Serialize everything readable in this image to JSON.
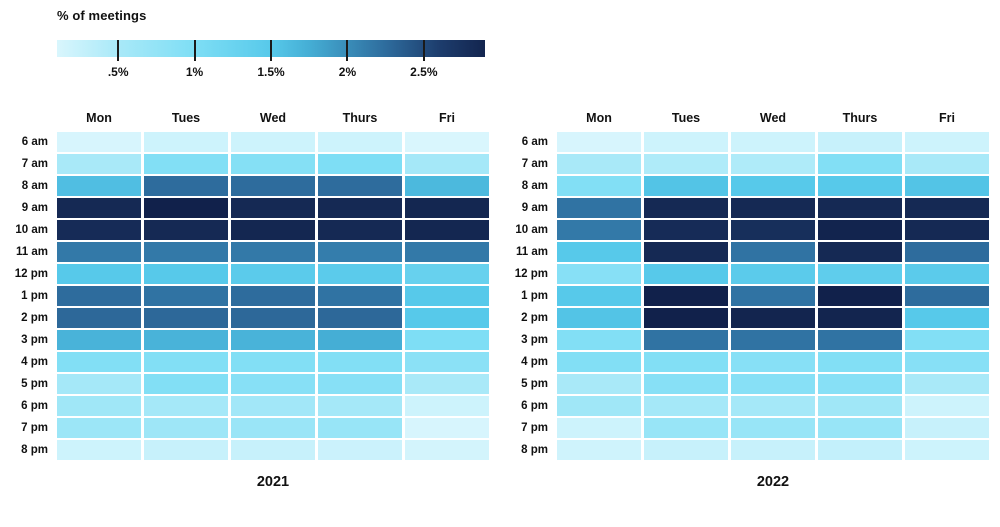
{
  "legend": {
    "title": "% of meetings",
    "ticks": [
      {
        "value": 0.5,
        "label": ".5%"
      },
      {
        "value": 1.0,
        "label": "1%"
      },
      {
        "value": 1.5,
        "label": "1.5%"
      },
      {
        "value": 2.0,
        "label": "2%"
      },
      {
        "value": 2.5,
        "label": "2.5%"
      }
    ],
    "domain": [
      0.1,
      2.9
    ],
    "position": "top-left"
  },
  "color_scale": {
    "stops": [
      [
        0.1,
        "#d9f6fd"
      ],
      [
        0.5,
        "#a9e9f8"
      ],
      [
        1.0,
        "#7edef5"
      ],
      [
        1.5,
        "#57c9ea"
      ],
      [
        1.75,
        "#45aed5"
      ],
      [
        2.25,
        "#2e6c9d"
      ],
      [
        2.6,
        "#1d3d6d"
      ],
      [
        2.9,
        "#13254f"
      ],
      [
        3.0,
        "#0f1e48"
      ]
    ]
  },
  "chart_data": [
    {
      "type": "heatmap",
      "title": "2021",
      "unit": "% of meetings",
      "x_categories": [
        "Mon",
        "Tues",
        "Wed",
        "Thurs",
        "Fri"
      ],
      "y_categories": [
        "6 am",
        "7 am",
        "8 am",
        "9 am",
        "10 am",
        "11 am",
        "12 pm",
        "1 pm",
        "2 pm",
        "3 pm",
        "4 pm",
        "5 pm",
        "6 pm",
        "7 pm",
        "8 pm"
      ],
      "values": [
        [
          0.12,
          0.2,
          0.2,
          0.2,
          0.1
        ],
        [
          0.5,
          0.95,
          0.92,
          1.0,
          0.55
        ],
        [
          1.6,
          2.25,
          2.25,
          2.25,
          1.65
        ],
        [
          2.85,
          2.95,
          2.85,
          2.85,
          2.88
        ],
        [
          2.82,
          2.85,
          2.88,
          2.85,
          2.88
        ],
        [
          2.15,
          2.15,
          2.15,
          2.12,
          2.15
        ],
        [
          1.5,
          1.5,
          1.45,
          1.45,
          1.3
        ],
        [
          2.25,
          2.2,
          2.25,
          2.2,
          1.5
        ],
        [
          2.28,
          2.28,
          2.28,
          2.28,
          1.5
        ],
        [
          1.7,
          1.7,
          1.7,
          1.75,
          1.0
        ],
        [
          0.95,
          0.95,
          0.95,
          0.95,
          0.85
        ],
        [
          0.55,
          0.95,
          0.9,
          0.9,
          0.5
        ],
        [
          0.6,
          0.55,
          0.58,
          0.55,
          0.2
        ],
        [
          0.65,
          0.63,
          0.68,
          0.7,
          0.12
        ],
        [
          0.2,
          0.25,
          0.25,
          0.22,
          0.15
        ]
      ]
    },
    {
      "type": "heatmap",
      "title": "2022",
      "unit": "% of meetings",
      "x_categories": [
        "Mon",
        "Tues",
        "Wed",
        "Thurs",
        "Fri"
      ],
      "y_categories": [
        "6 am",
        "7 am",
        "8 am",
        "9 am",
        "10 am",
        "11 am",
        "12 pm",
        "1 pm",
        "2 pm",
        "3 pm",
        "4 pm",
        "5 pm",
        "6 pm",
        "7 pm",
        "8 pm"
      ],
      "values": [
        [
          0.12,
          0.2,
          0.2,
          0.25,
          0.2
        ],
        [
          0.5,
          0.45,
          0.45,
          0.95,
          0.5
        ],
        [
          0.95,
          1.55,
          1.5,
          1.5,
          1.55
        ],
        [
          2.2,
          2.85,
          2.85,
          2.85,
          2.85
        ],
        [
          2.15,
          2.82,
          2.78,
          2.92,
          2.85
        ],
        [
          1.5,
          2.85,
          2.2,
          2.85,
          2.25
        ],
        [
          0.9,
          1.5,
          1.45,
          1.4,
          1.45
        ],
        [
          1.5,
          2.95,
          2.2,
          2.95,
          2.25
        ],
        [
          1.55,
          2.95,
          2.9,
          2.9,
          1.5
        ],
        [
          0.95,
          2.2,
          2.2,
          2.2,
          0.95
        ],
        [
          0.95,
          0.95,
          0.9,
          0.95,
          0.9
        ],
        [
          0.5,
          0.9,
          0.9,
          0.9,
          0.5
        ],
        [
          0.6,
          0.55,
          0.55,
          0.6,
          0.2
        ],
        [
          0.2,
          0.7,
          0.7,
          0.7,
          0.25
        ],
        [
          0.18,
          0.25,
          0.25,
          0.28,
          0.2
        ]
      ]
    }
  ]
}
